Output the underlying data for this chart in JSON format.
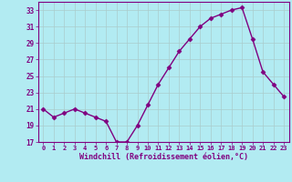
{
  "x": [
    0,
    1,
    2,
    3,
    4,
    5,
    6,
    7,
    8,
    9,
    10,
    11,
    12,
    13,
    14,
    15,
    16,
    17,
    18,
    19,
    20,
    21,
    22,
    23
  ],
  "y": [
    21.0,
    20.0,
    20.5,
    21.0,
    20.5,
    20.0,
    19.5,
    17.0,
    17.0,
    19.0,
    21.5,
    24.0,
    26.0,
    28.0,
    29.5,
    31.0,
    32.0,
    32.5,
    33.0,
    33.3,
    29.5,
    25.5,
    24.0,
    22.5
  ],
  "ylim": [
    17,
    34
  ],
  "yticks": [
    17,
    19,
    21,
    23,
    25,
    27,
    29,
    31,
    33
  ],
  "xlabel": "Windchill (Refroidissement éolien,°C)",
  "line_color": "#800080",
  "marker": "D",
  "bg_color": "#b2ebf2",
  "grid_color": "#aacccc",
  "spine_color": "#800080"
}
